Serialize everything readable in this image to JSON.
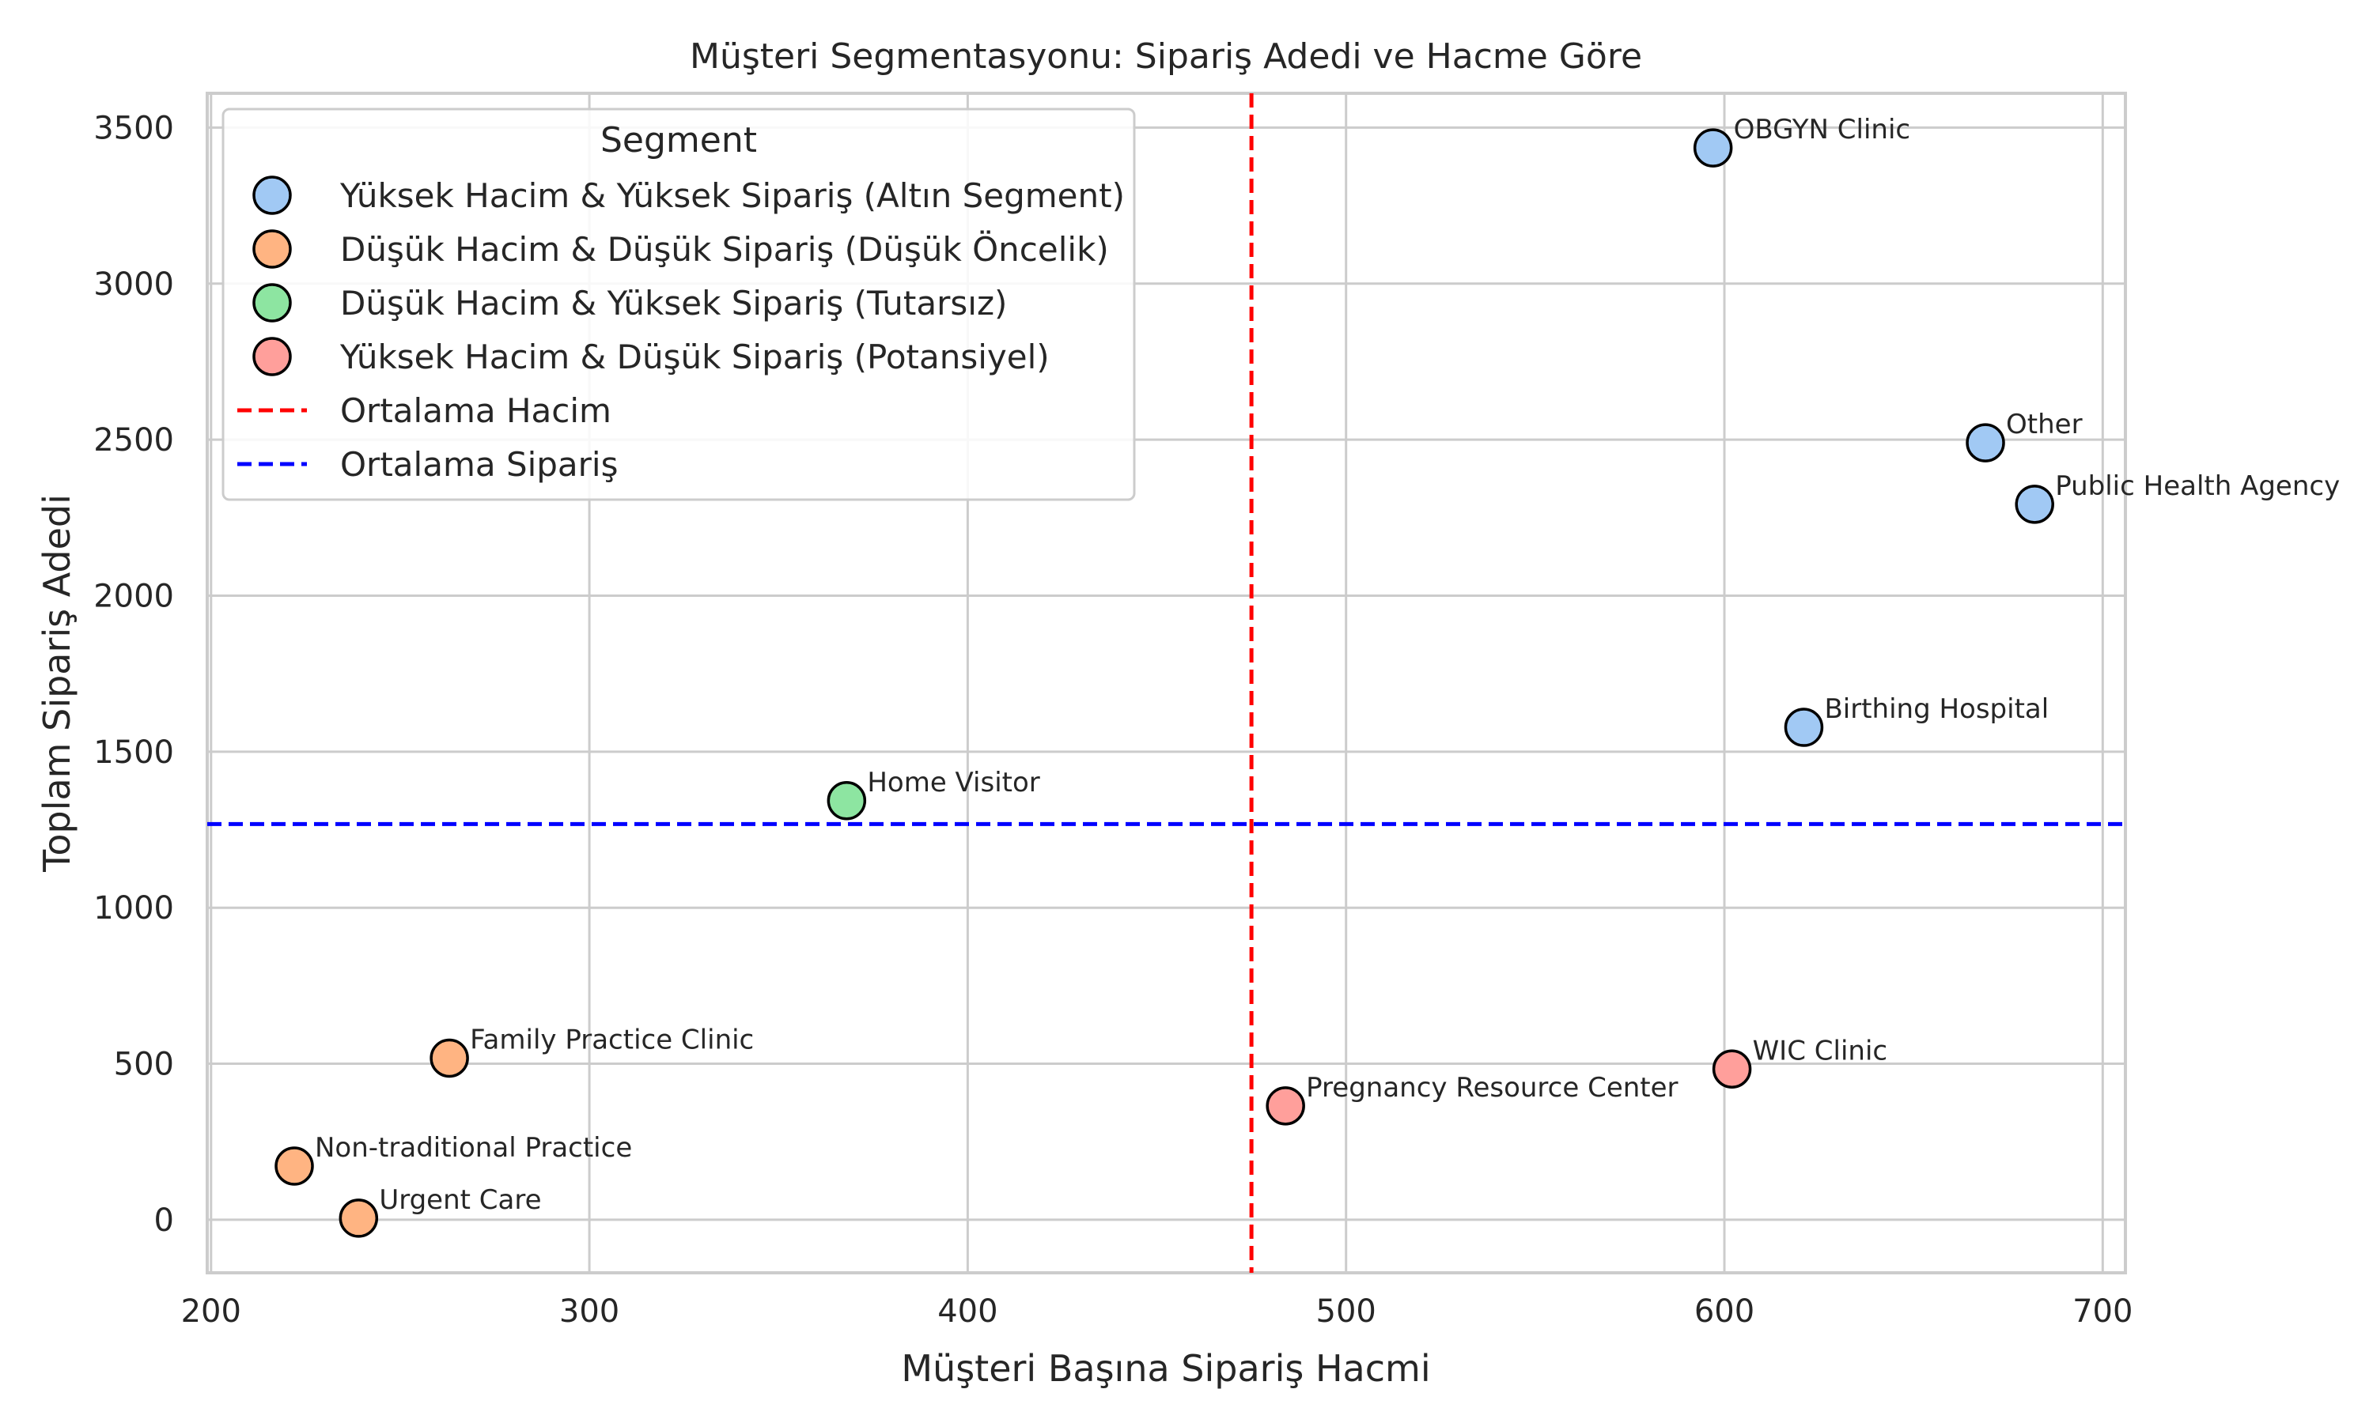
{
  "chart_data": {
    "type": "scatter",
    "title": "Müşteri Segmentasyonu: Sipariş Adedi ve Hacme Göre",
    "xlabel": "Müşteri Başına Sipariş Hacmi",
    "ylabel": "Toplam Sipariş Adedi",
    "xlim": [
      199,
      706
    ],
    "ylim": [
      -170,
      3610
    ],
    "xticks": [
      200,
      300,
      400,
      500,
      600,
      700
    ],
    "yticks": [
      0,
      500,
      1000,
      1500,
      2000,
      2500,
      3000,
      3500
    ],
    "grid": true,
    "legend": {
      "title": "Segment",
      "placement": "top-left",
      "entries": [
        {
          "label": "Yüksek Hacim & Yüksek Sipariş (Altın Segment)",
          "kind": "marker",
          "color": "#a1c9f4"
        },
        {
          "label": "Düşük Hacim & Düşük Sipariş (Düşük Öncelik)",
          "kind": "marker",
          "color": "#ffb482"
        },
        {
          "label": "Düşük Hacim & Yüksek Sipariş (Tutarsız)",
          "kind": "marker",
          "color": "#8de5a1"
        },
        {
          "label": "Yüksek Hacim & Düşük Sipariş (Potansiyel)",
          "kind": "marker",
          "color": "#ff9f9b"
        },
        {
          "label": "Ortalama Hacim",
          "kind": "line",
          "color": "#ff0000"
        },
        {
          "label": "Ortalama Sipariş",
          "kind": "line",
          "color": "#0000ff"
        }
      ]
    },
    "reference_lines": {
      "mean_volume_x": 475,
      "mean_orders_y": 1268
    },
    "series": [
      {
        "name": "Yüksek Hacim & Yüksek Sipariş (Altın Segment)",
        "color": "#a1c9f4",
        "points": [
          {
            "label": "OBGYN Clinic",
            "x": 597,
            "y": 3435
          },
          {
            "label": "Other",
            "x": 669,
            "y": 2490
          },
          {
            "label": "Public Health Agency",
            "x": 682,
            "y": 2293
          },
          {
            "label": "Birthing Hospital",
            "x": 621,
            "y": 1578
          }
        ]
      },
      {
        "name": "Düşük Hacim & Düşük Sipariş (Düşük Öncelik)",
        "color": "#ffb482",
        "points": [
          {
            "label": "Family Practice Clinic",
            "x": 263,
            "y": 518
          },
          {
            "label": "Non-traditional Practice",
            "x": 222,
            "y": 172
          },
          {
            "label": "Urgent Care",
            "x": 239,
            "y": 5
          }
        ]
      },
      {
        "name": "Düşük Hacim & Yüksek Sipariş (Tutarsız)",
        "color": "#8de5a1",
        "points": [
          {
            "label": "Home Visitor",
            "x": 368,
            "y": 1343
          }
        ]
      },
      {
        "name": "Yüksek Hacim & Düşük Sipariş (Potansiyel)",
        "color": "#ff9f9b",
        "points": [
          {
            "label": "Pregnancy Resource Center",
            "x": 484,
            "y": 365
          },
          {
            "label": "WIC Clinic",
            "x": 602,
            "y": 483
          }
        ]
      }
    ]
  }
}
